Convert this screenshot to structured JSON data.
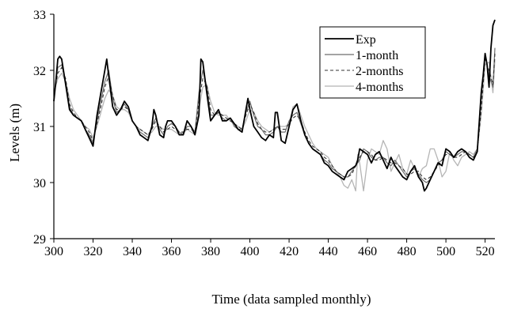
{
  "chart_data": {
    "type": "line",
    "title": "",
    "xlabel": "Time (data sampled monthly)",
    "ylabel": "Levels (m)",
    "xlim": [
      300,
      525
    ],
    "ylim": [
      29,
      33
    ],
    "xticks": [
      "300",
      "320",
      "340",
      "360",
      "380",
      "400",
      "420",
      "440",
      "460",
      "480",
      "500",
      "520"
    ],
    "yticks": [
      "29",
      "30",
      "31",
      "32",
      "33"
    ],
    "grid": false,
    "legend_position": "top-right",
    "series": [
      {
        "name": "Exp",
        "color": "#000000",
        "dash": "",
        "width": 1.8,
        "x": [
          300,
          301,
          302,
          303,
          304,
          306,
          308,
          310,
          312,
          314,
          316,
          318,
          320,
          322,
          324,
          326,
          327,
          328,
          330,
          332,
          334,
          336,
          338,
          340,
          342,
          344,
          346,
          348,
          350,
          351,
          352,
          354,
          356,
          357,
          358,
          360,
          362,
          364,
          366,
          368,
          370,
          372,
          374,
          375,
          376,
          378,
          380,
          382,
          384,
          386,
          388,
          390,
          392,
          394,
          396,
          398,
          399,
          400,
          402,
          404,
          406,
          408,
          410,
          412,
          413,
          414,
          416,
          418,
          420,
          422,
          424,
          426,
          428,
          430,
          432,
          434,
          436,
          438,
          440,
          442,
          444,
          446,
          448,
          450,
          452,
          454,
          455,
          456,
          458,
          460,
          462,
          464,
          466,
          468,
          470,
          472,
          474,
          476,
          478,
          480,
          482,
          484,
          486,
          488,
          489,
          490,
          492,
          494,
          496,
          498,
          500,
          502,
          504,
          506,
          508,
          510,
          512,
          514,
          516,
          518,
          519,
          520,
          521,
          522,
          523,
          524,
          525
        ],
        "y": [
          31.45,
          31.8,
          32.2,
          32.25,
          32.2,
          31.75,
          31.3,
          31.2,
          31.15,
          31.1,
          30.95,
          30.8,
          30.65,
          31.2,
          31.6,
          32.0,
          32.2,
          31.9,
          31.35,
          31.2,
          31.3,
          31.45,
          31.35,
          31.1,
          31.0,
          30.85,
          30.8,
          30.75,
          31.0,
          31.3,
          31.2,
          30.85,
          30.8,
          31.0,
          31.1,
          31.1,
          31.0,
          30.85,
          30.85,
          31.1,
          31.0,
          30.85,
          31.2,
          32.2,
          32.15,
          31.6,
          31.1,
          31.2,
          31.3,
          31.1,
          31.1,
          31.15,
          31.05,
          30.95,
          30.9,
          31.3,
          31.5,
          31.3,
          31.0,
          30.9,
          30.8,
          30.75,
          30.85,
          30.8,
          31.25,
          31.25,
          30.75,
          30.7,
          31.0,
          31.3,
          31.4,
          31.1,
          30.85,
          30.7,
          30.6,
          30.55,
          30.5,
          30.35,
          30.3,
          30.2,
          30.15,
          30.1,
          30.05,
          30.2,
          30.25,
          30.3,
          30.4,
          30.6,
          30.55,
          30.5,
          30.35,
          30.5,
          30.55,
          30.4,
          30.25,
          30.45,
          30.3,
          30.2,
          30.1,
          30.05,
          30.2,
          30.3,
          30.1,
          30.0,
          29.85,
          29.9,
          30.05,
          30.2,
          30.35,
          30.3,
          30.6,
          30.55,
          30.45,
          30.55,
          30.6,
          30.55,
          30.45,
          30.4,
          30.55,
          31.6,
          31.9,
          32.3,
          32.1,
          31.7,
          32.4,
          32.8,
          32.9
        ]
      },
      {
        "name": "1-month",
        "color": "#6e6e6e",
        "dash": "",
        "width": 1.2,
        "x": [
          300,
          302,
          304,
          306,
          308,
          310,
          312,
          314,
          316,
          318,
          320,
          322,
          324,
          326,
          328,
          330,
          332,
          334,
          336,
          338,
          340,
          342,
          344,
          346,
          348,
          350,
          352,
          354,
          356,
          358,
          360,
          362,
          364,
          366,
          368,
          370,
          372,
          374,
          376,
          378,
          380,
          382,
          384,
          386,
          388,
          390,
          392,
          394,
          396,
          398,
          400,
          402,
          404,
          406,
          408,
          410,
          412,
          414,
          416,
          418,
          420,
          422,
          424,
          426,
          428,
          430,
          432,
          434,
          436,
          438,
          440,
          442,
          444,
          446,
          448,
          450,
          452,
          454,
          456,
          458,
          460,
          462,
          464,
          466,
          468,
          470,
          472,
          474,
          476,
          478,
          480,
          482,
          484,
          486,
          488,
          490,
          492,
          494,
          496,
          498,
          500,
          502,
          504,
          506,
          508,
          510,
          512,
          514,
          516,
          518,
          520,
          522,
          524,
          525
        ],
        "y": [
          31.5,
          32.05,
          32.1,
          31.8,
          31.35,
          31.2,
          31.15,
          31.1,
          30.95,
          30.85,
          30.7,
          31.1,
          31.45,
          31.8,
          32.0,
          31.5,
          31.25,
          31.3,
          31.4,
          31.3,
          31.1,
          31.0,
          30.9,
          30.85,
          30.8,
          31.0,
          31.15,
          30.95,
          30.85,
          31.0,
          31.05,
          31.0,
          30.9,
          30.85,
          31.0,
          31.0,
          30.9,
          31.6,
          32.0,
          31.7,
          31.2,
          31.2,
          31.25,
          31.15,
          31.1,
          31.15,
          31.0,
          30.95,
          30.95,
          31.25,
          31.45,
          31.2,
          31.0,
          30.95,
          30.85,
          30.85,
          30.9,
          31.0,
          30.9,
          30.9,
          31.1,
          31.2,
          31.25,
          31.05,
          30.85,
          30.7,
          30.6,
          30.55,
          30.5,
          30.4,
          30.35,
          30.25,
          30.2,
          30.15,
          30.1,
          30.1,
          30.2,
          30.3,
          30.4,
          30.6,
          30.55,
          30.45,
          30.4,
          30.45,
          30.45,
          30.35,
          30.3,
          30.4,
          30.3,
          30.2,
          30.1,
          30.2,
          30.25,
          30.15,
          30.05,
          30.0,
          30.05,
          30.2,
          30.35,
          30.4,
          30.55,
          30.5,
          30.45,
          30.5,
          30.55,
          30.55,
          30.5,
          30.45,
          30.6,
          31.5,
          32.3,
          31.9,
          31.7,
          32.4
        ]
      },
      {
        "name": "2-months",
        "color": "#333333",
        "dash": "4,3",
        "width": 1.1,
        "x": [
          300,
          302,
          304,
          306,
          308,
          310,
          312,
          314,
          316,
          318,
          320,
          322,
          324,
          326,
          328,
          330,
          332,
          334,
          336,
          338,
          340,
          342,
          344,
          346,
          348,
          350,
          352,
          354,
          356,
          358,
          360,
          362,
          364,
          366,
          368,
          370,
          372,
          374,
          376,
          378,
          380,
          382,
          384,
          386,
          388,
          390,
          392,
          394,
          396,
          398,
          400,
          402,
          404,
          406,
          408,
          410,
          412,
          414,
          416,
          418,
          420,
          422,
          424,
          426,
          428,
          430,
          432,
          434,
          436,
          438,
          440,
          442,
          444,
          446,
          448,
          450,
          452,
          454,
          456,
          458,
          460,
          462,
          464,
          466,
          468,
          470,
          472,
          474,
          476,
          478,
          480,
          482,
          484,
          486,
          488,
          490,
          492,
          494,
          496,
          498,
          500,
          502,
          504,
          506,
          508,
          510,
          512,
          514,
          516,
          518,
          520,
          522,
          524,
          525
        ],
        "y": [
          31.55,
          31.95,
          32.05,
          31.85,
          31.4,
          31.25,
          31.15,
          31.1,
          31.0,
          30.9,
          30.75,
          31.05,
          31.35,
          31.7,
          31.9,
          31.55,
          31.3,
          31.3,
          31.35,
          31.3,
          31.1,
          31.0,
          30.95,
          30.9,
          30.85,
          30.95,
          31.1,
          31.0,
          30.9,
          30.95,
          31.0,
          30.95,
          30.9,
          30.9,
          30.95,
          30.95,
          30.9,
          31.45,
          31.85,
          31.75,
          31.3,
          31.2,
          31.25,
          31.2,
          31.15,
          31.1,
          31.05,
          31.0,
          30.95,
          31.2,
          31.4,
          31.25,
          31.05,
          30.95,
          30.9,
          30.9,
          30.95,
          31.0,
          30.95,
          30.95,
          31.05,
          31.15,
          31.2,
          31.1,
          30.9,
          30.75,
          30.65,
          30.6,
          30.55,
          30.45,
          30.4,
          30.3,
          30.2,
          30.15,
          30.1,
          30.1,
          30.15,
          30.3,
          30.45,
          30.55,
          30.55,
          30.5,
          30.4,
          30.4,
          30.45,
          30.4,
          30.35,
          30.35,
          30.3,
          30.25,
          30.15,
          30.15,
          30.2,
          30.2,
          30.1,
          30.05,
          30.1,
          30.2,
          30.3,
          30.4,
          30.5,
          30.5,
          30.45,
          30.45,
          30.5,
          30.55,
          30.5,
          30.45,
          30.55,
          31.3,
          32.2,
          32.0,
          31.75,
          32.3
        ]
      },
      {
        "name": "4-months",
        "color": "#b5b5b5",
        "dash": "",
        "width": 1.3,
        "x": [
          300,
          302,
          304,
          306,
          308,
          310,
          312,
          314,
          316,
          318,
          320,
          322,
          324,
          326,
          328,
          330,
          332,
          334,
          336,
          338,
          340,
          342,
          344,
          346,
          348,
          350,
          352,
          354,
          356,
          358,
          360,
          362,
          364,
          366,
          368,
          370,
          372,
          374,
          376,
          378,
          380,
          382,
          384,
          386,
          388,
          390,
          392,
          394,
          396,
          398,
          400,
          402,
          404,
          406,
          408,
          410,
          412,
          414,
          416,
          418,
          420,
          422,
          424,
          426,
          428,
          430,
          432,
          434,
          436,
          438,
          440,
          442,
          444,
          446,
          448,
          450,
          452,
          454,
          455,
          456,
          458,
          460,
          462,
          464,
          466,
          468,
          470,
          472,
          474,
          476,
          478,
          480,
          482,
          484,
          486,
          488,
          490,
          492,
          494,
          496,
          498,
          500,
          502,
          504,
          506,
          508,
          510,
          512,
          514,
          516,
          518,
          520,
          522,
          524,
          525
        ],
        "y": [
          31.6,
          31.85,
          31.95,
          31.8,
          31.5,
          31.3,
          31.2,
          31.1,
          31.0,
          30.95,
          30.8,
          31.0,
          31.25,
          31.5,
          31.65,
          31.55,
          31.35,
          31.3,
          31.3,
          31.25,
          31.1,
          31.0,
          30.95,
          30.9,
          30.85,
          30.9,
          31.0,
          31.0,
          30.95,
          30.95,
          30.95,
          30.9,
          30.85,
          30.9,
          30.95,
          30.9,
          30.85,
          31.3,
          31.7,
          31.75,
          31.45,
          31.25,
          31.2,
          31.2,
          31.2,
          31.1,
          31.05,
          31.0,
          30.95,
          31.1,
          31.3,
          31.25,
          31.1,
          31.0,
          30.95,
          30.9,
          30.95,
          31.0,
          31.0,
          31.0,
          31.05,
          31.35,
          31.4,
          31.2,
          31.0,
          30.85,
          30.7,
          30.6,
          30.55,
          30.5,
          30.45,
          30.3,
          30.2,
          30.1,
          29.95,
          29.9,
          30.05,
          29.85,
          30.5,
          30.35,
          29.85,
          30.4,
          30.6,
          30.55,
          30.5,
          30.75,
          30.6,
          30.2,
          30.35,
          30.5,
          30.25,
          30.15,
          30.4,
          30.25,
          30.1,
          30.25,
          30.3,
          30.6,
          30.6,
          30.4,
          30.1,
          30.2,
          30.55,
          30.4,
          30.3,
          30.45,
          30.5,
          30.55,
          30.5,
          30.6,
          31.2,
          32.1,
          32.15,
          31.6,
          32.2
        ]
      }
    ]
  }
}
